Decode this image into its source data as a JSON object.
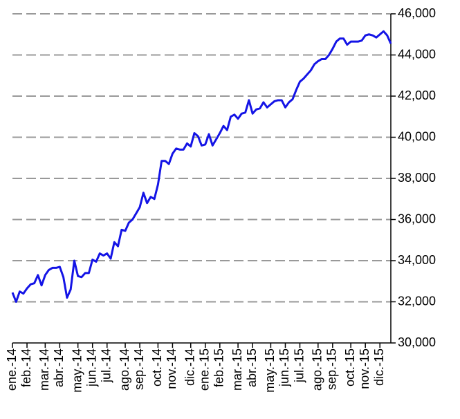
{
  "chart_data": {
    "type": "line",
    "categories": [
      "ene.-14",
      null,
      null,
      null,
      "feb.-14",
      null,
      null,
      null,
      null,
      "mar.-14",
      null,
      null,
      null,
      "abr.-14",
      null,
      null,
      null,
      null,
      "may.-14",
      null,
      null,
      null,
      "jun.-14",
      null,
      null,
      null,
      "jul.-14",
      null,
      null,
      null,
      null,
      "ago.-14",
      null,
      null,
      null,
      "sep.-14",
      null,
      null,
      null,
      null,
      "oct.-14",
      null,
      null,
      null,
      "nov.-14",
      null,
      null,
      null,
      null,
      "dic.-14",
      null,
      null,
      null,
      "ene.-15",
      null,
      null,
      null,
      "feb.-15",
      null,
      null,
      null,
      null,
      "mar.-15",
      null,
      null,
      null,
      "abr.-15",
      null,
      null,
      null,
      null,
      "may.-15",
      null,
      null,
      null,
      "jun.-15",
      null,
      null,
      null,
      "jul.-15",
      null,
      null,
      null,
      null,
      "ago.-15",
      null,
      null,
      null,
      "sep.-15",
      null,
      null,
      null,
      null,
      "oct.-15",
      null,
      null,
      null,
      "nov.-15",
      null,
      null,
      null,
      "dic.-15",
      null,
      null,
      null
    ],
    "values": [
      32450,
      32000,
      32500,
      32400,
      32650,
      32850,
      32900,
      33300,
      32800,
      33300,
      33550,
      33650,
      33650,
      33700,
      33200,
      32200,
      32600,
      34000,
      33250,
      33200,
      33400,
      33400,
      34050,
      33950,
      34350,
      34250,
      34350,
      34100,
      34900,
      34700,
      35500,
      35450,
      35850,
      36000,
      36300,
      36600,
      37300,
      36800,
      37100,
      37000,
      37700,
      38850,
      38850,
      38700,
      39200,
      39450,
      39400,
      39400,
      39700,
      39550,
      40200,
      40050,
      39600,
      39650,
      40150,
      39600,
      39900,
      40200,
      40550,
      40350,
      41000,
      41100,
      40900,
      41150,
      41200,
      41800,
      41150,
      41350,
      41400,
      41700,
      41450,
      41600,
      41750,
      41800,
      41800,
      41450,
      41700,
      41850,
      42300,
      42700,
      42850,
      43050,
      43250,
      43550,
      43700,
      43800,
      43800,
      44000,
      44300,
      44650,
      44800,
      44800,
      44500,
      44650,
      44650,
      44650,
      44700,
      44950,
      45000,
      44950,
      44850,
      45000,
      45150,
      44950,
      44550
    ],
    "color": "#1414e6",
    "ylim": [
      30000,
      46000
    ],
    "yticks": [
      {
        "value": 30000,
        "label": "30,000"
      },
      {
        "value": 32000,
        "label": "32,000"
      },
      {
        "value": 34000,
        "label": "34,000"
      },
      {
        "value": 36000,
        "label": "36,000"
      },
      {
        "value": 38000,
        "label": "38,000"
      },
      {
        "value": 40000,
        "label": "40,000"
      },
      {
        "value": 42000,
        "label": "42,000"
      },
      {
        "value": 44000,
        "label": "44,000"
      },
      {
        "value": 46000,
        "label": "46,000"
      }
    ],
    "grid": true
  }
}
